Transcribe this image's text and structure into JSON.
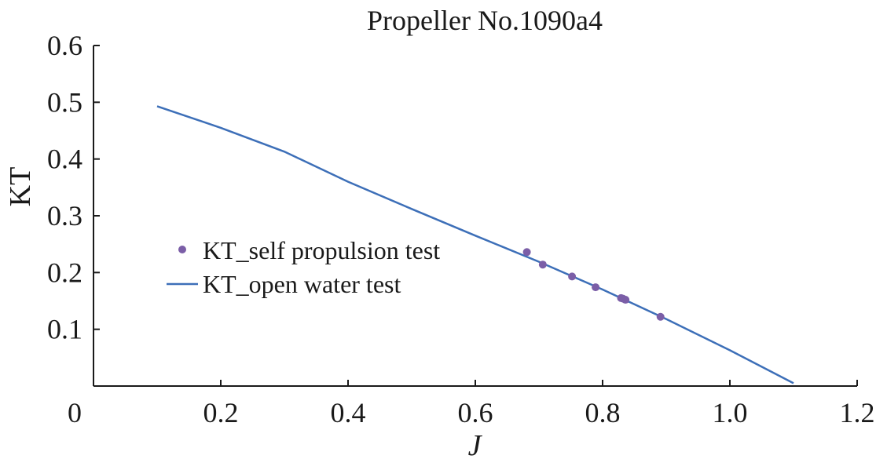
{
  "chart_data": {
    "type": "line",
    "title": "Propeller No.1090a4",
    "xlabel": "J",
    "ylabel": "KT",
    "xlim": [
      0,
      1.2
    ],
    "ylim": [
      0,
      0.6
    ],
    "x_ticks": [
      {
        "value": 0,
        "label": "0"
      },
      {
        "value": 0.2,
        "label": "0.2"
      },
      {
        "value": 0.4,
        "label": "0.4"
      },
      {
        "value": 0.6,
        "label": "0.6"
      },
      {
        "value": 0.8,
        "label": "0.8"
      },
      {
        "value": 1.0,
        "label": "1.0"
      },
      {
        "value": 1.2,
        "label": "1.2"
      }
    ],
    "y_ticks": [
      {
        "value": 0.1,
        "label": "0.1"
      },
      {
        "value": 0.2,
        "label": "0.2"
      },
      {
        "value": 0.3,
        "label": "0.3"
      },
      {
        "value": 0.4,
        "label": "0.4"
      },
      {
        "value": 0.5,
        "label": "0.5"
      },
      {
        "value": 0.6,
        "label": "0.6"
      }
    ],
    "grid": false,
    "legend_position": "center-left",
    "series": [
      {
        "name": "KT_self propulsion test",
        "kind": "scatter",
        "color": "#7b5ea7",
        "points": [
          {
            "x": 0.681,
            "y": 0.236
          },
          {
            "x": 0.706,
            "y": 0.214
          },
          {
            "x": 0.752,
            "y": 0.193
          },
          {
            "x": 0.789,
            "y": 0.174
          },
          {
            "x": 0.829,
            "y": 0.155
          },
          {
            "x": 0.832,
            "y": 0.154
          },
          {
            "x": 0.836,
            "y": 0.152
          },
          {
            "x": 0.891,
            "y": 0.122
          }
        ]
      },
      {
        "name": "KT_open water test",
        "kind": "line",
        "color": "#3d6fb8",
        "points": [
          {
            "x": 0.1,
            "y": 0.493
          },
          {
            "x": 0.2,
            "y": 0.455
          },
          {
            "x": 0.3,
            "y": 0.413
          },
          {
            "x": 0.4,
            "y": 0.36
          },
          {
            "x": 0.5,
            "y": 0.312
          },
          {
            "x": 0.6,
            "y": 0.265
          },
          {
            "x": 0.7,
            "y": 0.219
          },
          {
            "x": 0.8,
            "y": 0.17
          },
          {
            "x": 0.9,
            "y": 0.118
          },
          {
            "x": 1.0,
            "y": 0.063
          },
          {
            "x": 1.1,
            "y": 0.005
          }
        ]
      }
    ]
  }
}
